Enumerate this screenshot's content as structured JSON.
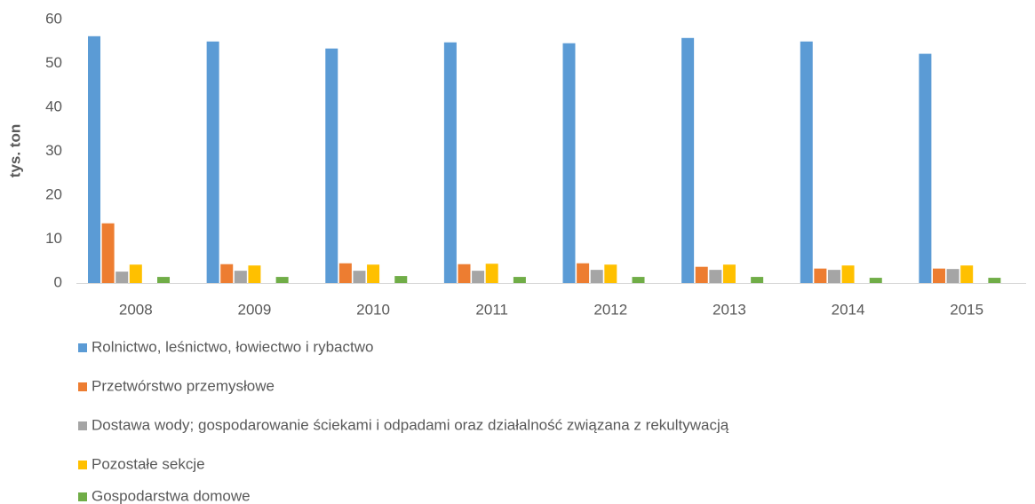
{
  "chart_data": {
    "type": "bar",
    "y_label": "tys. ton",
    "categories": [
      "2008",
      "2009",
      "2010",
      "2011",
      "2012",
      "2013",
      "2014",
      "2015"
    ],
    "series": [
      {
        "name": "Rolnictwo, leśnictwo, łowiectwo i rybactwo",
        "color": "#5b9bd5",
        "values": [
          56.2,
          55.0,
          53.4,
          54.8,
          54.6,
          55.8,
          55.0,
          52.2
        ]
      },
      {
        "name": "Przetwórstwo przemysłowe",
        "color": "#ed7d31",
        "values": [
          13.6,
          4.3,
          4.5,
          4.3,
          4.5,
          3.7,
          3.3,
          3.3
        ]
      },
      {
        "name": "Dostawa wody; gospodarowanie ściekami i odpadami oraz działalność związana z rekultywacją",
        "color": "#a5a5a5",
        "values": [
          2.6,
          2.8,
          2.8,
          2.8,
          3.0,
          3.0,
          3.0,
          3.2
        ]
      },
      {
        "name": "Pozostałe sekcje",
        "color": "#ffc000",
        "values": [
          4.2,
          4.0,
          4.2,
          4.4,
          4.2,
          4.2,
          4.0,
          4.0
        ]
      },
      {
        "name": "Gospodarstwa domowe",
        "color": "#70ad47",
        "values": [
          1.4,
          1.4,
          1.6,
          1.4,
          1.4,
          1.4,
          1.2,
          1.2
        ]
      }
    ],
    "ylim": [
      0,
      60
    ],
    "yticks": [
      0,
      10,
      20,
      30,
      40,
      50,
      60
    ],
    "grid": false,
    "legend": "bottom"
  }
}
